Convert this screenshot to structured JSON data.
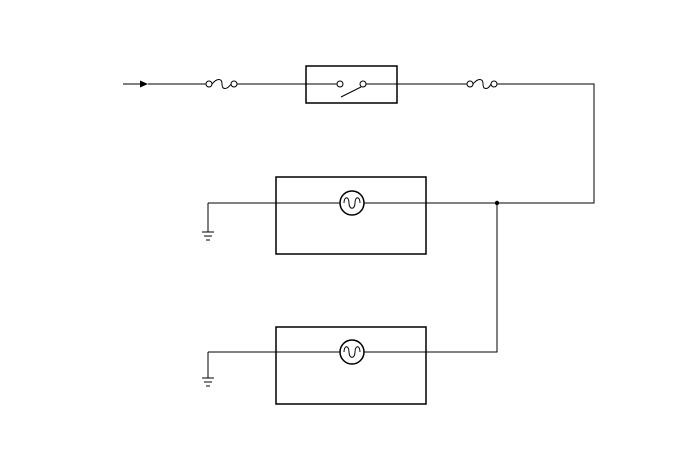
{
  "diagram": {
    "type": "wiring-schematic",
    "components": {
      "input": "input-arrow-icon",
      "fuse_1": "fuse-icon",
      "switch": "switch-icon",
      "fuse_2": "fuse-icon",
      "lamp_1": "lamp-icon",
      "lamp_2": "lamp-icon",
      "ground_1": "ground-icon",
      "ground_2": "ground-icon",
      "junction": "junction-dot"
    },
    "colors": {
      "line": "#000000",
      "background": "#ffffff"
    }
  }
}
